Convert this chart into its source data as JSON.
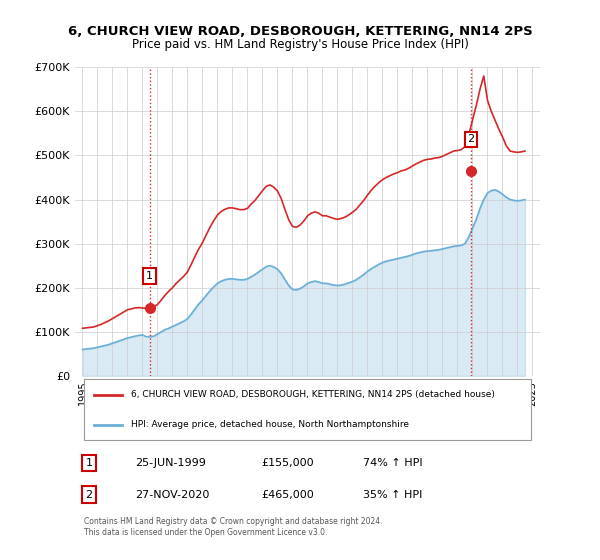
{
  "title_line1": "6, CHURCH VIEW ROAD, DESBOROUGH, KETTERING, NN14 2PS",
  "title_line2": "Price paid vs. HM Land Registry's House Price Index (HPI)",
  "ylabel": "",
  "ylim": [
    0,
    700000
  ],
  "yticks": [
    0,
    100000,
    200000,
    300000,
    400000,
    500000,
    600000,
    700000
  ],
  "ytick_labels": [
    "£0",
    "£100K",
    "£200K",
    "£300K",
    "£400K",
    "£500K",
    "£600K",
    "£700K"
  ],
  "sale1_x": 1999.48,
  "sale1_y": 155000,
  "sale1_label": "1",
  "sale2_x": 2020.9,
  "sale2_y": 465000,
  "sale2_label": "2",
  "hpi_color": "#6baed6",
  "price_color": "#d62728",
  "vline_color": "#d62728",
  "vline_style": ":",
  "legend_line1": "6, CHURCH VIEW ROAD, DESBOROUGH, KETTERING, NN14 2PS (detached house)",
  "legend_line2": "HPI: Average price, detached house, North Northamptonshire",
  "table_row1": [
    "1",
    "25-JUN-1999",
    "£155,000",
    "74% ↑ HPI"
  ],
  "table_row2": [
    "2",
    "27-NOV-2020",
    "£465,000",
    "35% ↑ HPI"
  ],
  "footer": "Contains HM Land Registry data © Crown copyright and database right 2024.\nThis data is licensed under the Open Government Licence v3.0.",
  "bg_color": "#ffffff",
  "grid_color": "#cccccc",
  "hpi_data_x": [
    1995.0,
    1995.25,
    1995.5,
    1995.75,
    1996.0,
    1996.25,
    1996.5,
    1996.75,
    1997.0,
    1997.25,
    1997.5,
    1997.75,
    1998.0,
    1998.25,
    1998.5,
    1998.75,
    1999.0,
    1999.25,
    1999.5,
    1999.75,
    2000.0,
    2000.25,
    2000.5,
    2000.75,
    2001.0,
    2001.25,
    2001.5,
    2001.75,
    2002.0,
    2002.25,
    2002.5,
    2002.75,
    2003.0,
    2003.25,
    2003.5,
    2003.75,
    2004.0,
    2004.25,
    2004.5,
    2004.75,
    2005.0,
    2005.25,
    2005.5,
    2005.75,
    2006.0,
    2006.25,
    2006.5,
    2006.75,
    2007.0,
    2007.25,
    2007.5,
    2007.75,
    2008.0,
    2008.25,
    2008.5,
    2008.75,
    2009.0,
    2009.25,
    2009.5,
    2009.75,
    2010.0,
    2010.25,
    2010.5,
    2010.75,
    2011.0,
    2011.25,
    2011.5,
    2011.75,
    2012.0,
    2012.25,
    2012.5,
    2012.75,
    2013.0,
    2013.25,
    2013.5,
    2013.75,
    2014.0,
    2014.25,
    2014.5,
    2014.75,
    2015.0,
    2015.25,
    2015.5,
    2015.75,
    2016.0,
    2016.25,
    2016.5,
    2016.75,
    2017.0,
    2017.25,
    2017.5,
    2017.75,
    2018.0,
    2018.25,
    2018.5,
    2018.75,
    2019.0,
    2019.25,
    2019.5,
    2019.75,
    2020.0,
    2020.25,
    2020.5,
    2020.75,
    2021.0,
    2021.25,
    2021.5,
    2021.75,
    2022.0,
    2022.25,
    2022.5,
    2022.75,
    2023.0,
    2023.25,
    2023.5,
    2023.75,
    2024.0,
    2024.25,
    2024.5
  ],
  "hpi_data_y": [
    60000,
    61000,
    62000,
    63000,
    65000,
    67000,
    69000,
    71000,
    74000,
    77000,
    80000,
    83000,
    86000,
    88000,
    90000,
    92000,
    93000,
    89000,
    89000,
    90000,
    95000,
    100000,
    105000,
    108000,
    112000,
    116000,
    120000,
    124000,
    130000,
    140000,
    152000,
    163000,
    172000,
    183000,
    193000,
    202000,
    210000,
    215000,
    218000,
    220000,
    220000,
    219000,
    218000,
    218000,
    220000,
    225000,
    230000,
    236000,
    242000,
    248000,
    250000,
    247000,
    242000,
    232000,
    218000,
    205000,
    196000,
    195000,
    198000,
    203000,
    210000,
    213000,
    215000,
    213000,
    210000,
    210000,
    208000,
    206000,
    205000,
    206000,
    208000,
    211000,
    214000,
    218000,
    224000,
    230000,
    237000,
    243000,
    248000,
    253000,
    257000,
    260000,
    262000,
    264000,
    266000,
    268000,
    270000,
    272000,
    275000,
    278000,
    280000,
    282000,
    283000,
    284000,
    285000,
    286000,
    288000,
    290000,
    292000,
    294000,
    295000,
    296000,
    300000,
    315000,
    335000,
    355000,
    380000,
    400000,
    415000,
    420000,
    422000,
    418000,
    412000,
    405000,
    400000,
    398000,
    397000,
    398000,
    400000
  ],
  "price_data_x": [
    1995.0,
    1995.25,
    1995.5,
    1995.75,
    1996.0,
    1996.25,
    1996.5,
    1996.75,
    1997.0,
    1997.25,
    1997.5,
    1997.75,
    1998.0,
    1998.25,
    1998.5,
    1998.75,
    1999.0,
    1999.25,
    1999.5,
    1999.75,
    2000.0,
    2000.25,
    2000.5,
    2000.75,
    2001.0,
    2001.25,
    2001.5,
    2001.75,
    2002.0,
    2002.25,
    2002.5,
    2002.75,
    2003.0,
    2003.25,
    2003.5,
    2003.75,
    2004.0,
    2004.25,
    2004.5,
    2004.75,
    2005.0,
    2005.25,
    2005.5,
    2005.75,
    2006.0,
    2006.25,
    2006.5,
    2006.75,
    2007.0,
    2007.25,
    2007.5,
    2007.75,
    2008.0,
    2008.25,
    2008.5,
    2008.75,
    2009.0,
    2009.25,
    2009.5,
    2009.75,
    2010.0,
    2010.25,
    2010.5,
    2010.75,
    2011.0,
    2011.25,
    2011.5,
    2011.75,
    2012.0,
    2012.25,
    2012.5,
    2012.75,
    2013.0,
    2013.25,
    2013.5,
    2013.75,
    2014.0,
    2014.25,
    2014.5,
    2014.75,
    2015.0,
    2015.25,
    2015.5,
    2015.75,
    2016.0,
    2016.25,
    2016.5,
    2016.75,
    2017.0,
    2017.25,
    2017.5,
    2017.75,
    2018.0,
    2018.25,
    2018.5,
    2018.75,
    2019.0,
    2019.25,
    2019.5,
    2019.75,
    2020.0,
    2020.25,
    2020.5,
    2020.75,
    2021.0,
    2021.25,
    2021.5,
    2021.75,
    2022.0,
    2022.25,
    2022.5,
    2022.75,
    2023.0,
    2023.25,
    2023.5,
    2023.75,
    2024.0,
    2024.25,
    2024.5
  ],
  "price_data_y": [
    108000,
    109000,
    110000,
    111000,
    114000,
    117000,
    121000,
    125000,
    130000,
    135000,
    140000,
    145000,
    150000,
    152000,
    154000,
    155000,
    154000,
    153000,
    155000,
    157000,
    162000,
    172000,
    183000,
    192000,
    200000,
    210000,
    218000,
    226000,
    236000,
    253000,
    271000,
    288000,
    302000,
    320000,
    337000,
    352000,
    365000,
    373000,
    378000,
    381000,
    381000,
    379000,
    377000,
    377000,
    380000,
    390000,
    398000,
    409000,
    420000,
    430000,
    433000,
    428000,
    419000,
    402000,
    377000,
    354000,
    339000,
    337000,
    342000,
    351000,
    363000,
    369000,
    372000,
    369000,
    363000,
    363000,
    360000,
    357000,
    355000,
    357000,
    360000,
    365000,
    371000,
    378000,
    388000,
    398000,
    410000,
    421000,
    430000,
    438000,
    445000,
    450000,
    454000,
    458000,
    461000,
    465000,
    467000,
    471000,
    476000,
    481000,
    485000,
    489000,
    491000,
    492000,
    494000,
    495000,
    498000,
    502000,
    506000,
    510000,
    511000,
    513000,
    520000,
    546000,
    580000,
    613000,
    650000,
    680000,
    625000,
    600000,
    580000,
    560000,
    542000,
    522000,
    510000,
    508000,
    507000,
    508000,
    510000
  ],
  "xlim": [
    1994.5,
    2025.5
  ],
  "xtick_years": [
    1995,
    1996,
    1997,
    1998,
    1999,
    2000,
    2001,
    2002,
    2003,
    2004,
    2005,
    2006,
    2007,
    2008,
    2009,
    2010,
    2011,
    2012,
    2013,
    2014,
    2015,
    2016,
    2017,
    2018,
    2019,
    2020,
    2021,
    2022,
    2023,
    2024,
    2025
  ]
}
